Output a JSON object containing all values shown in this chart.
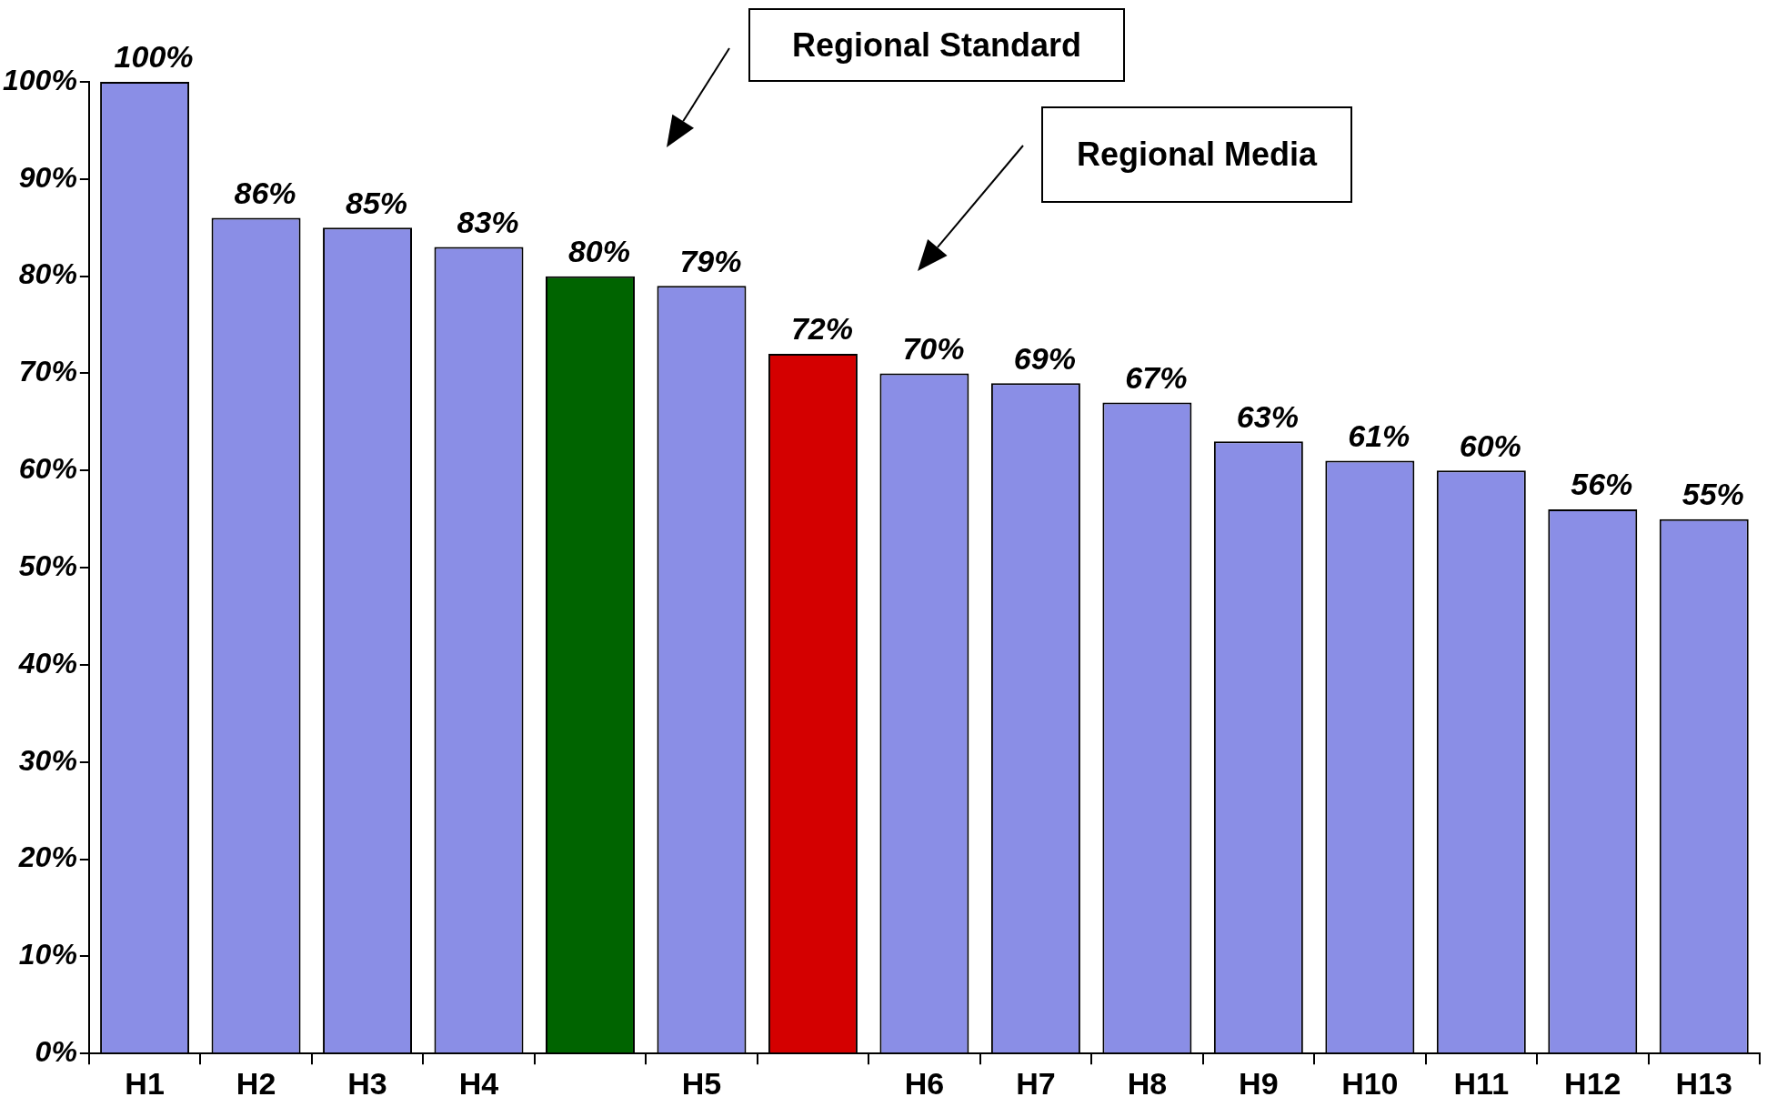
{
  "chart_data": {
    "type": "bar",
    "categories": [
      "H1",
      "H2",
      "H3",
      "H4",
      null,
      "H5",
      null,
      "H6",
      "H7",
      "H8",
      "H9",
      "H10",
      "H11",
      "H12",
      "H13"
    ],
    "values": [
      100,
      86,
      85,
      83,
      80,
      79,
      72,
      70,
      69,
      67,
      63,
      61,
      60,
      56,
      55
    ],
    "value_labels": [
      "100%",
      "86%",
      "85%",
      "83%",
      "80%",
      "79%",
      "72%",
      "70%",
      "69%",
      "67%",
      "63%",
      "61%",
      "60%",
      "56%",
      "55%"
    ],
    "colors": [
      "#8a8ee6",
      "#8a8ee6",
      "#8a8ee6",
      "#8a8ee6",
      "#006400",
      "#8a8ee6",
      "#d40000",
      "#8a8ee6",
      "#8a8ee6",
      "#8a8ee6",
      "#8a8ee6",
      "#8a8ee6",
      "#8a8ee6",
      "#8a8ee6",
      "#8a8ee6"
    ],
    "ylim": [
      0,
      100
    ],
    "yticks": [
      {
        "value": 0,
        "label": "0%"
      },
      {
        "value": 10,
        "label": "10%"
      },
      {
        "value": 20,
        "label": "20%"
      },
      {
        "value": 30,
        "label": "30%"
      },
      {
        "value": 40,
        "label": "40%"
      },
      {
        "value": 50,
        "label": "50%"
      },
      {
        "value": 60,
        "label": "60%"
      },
      {
        "value": 70,
        "label": "70%"
      },
      {
        "value": 80,
        "label": "80%"
      },
      {
        "value": 90,
        "label": "90%"
      },
      {
        "value": 100,
        "label": "100%"
      }
    ],
    "annotations": [
      "Regional Standard",
      "Regional Media"
    ],
    "grid": false,
    "legend": false
  }
}
